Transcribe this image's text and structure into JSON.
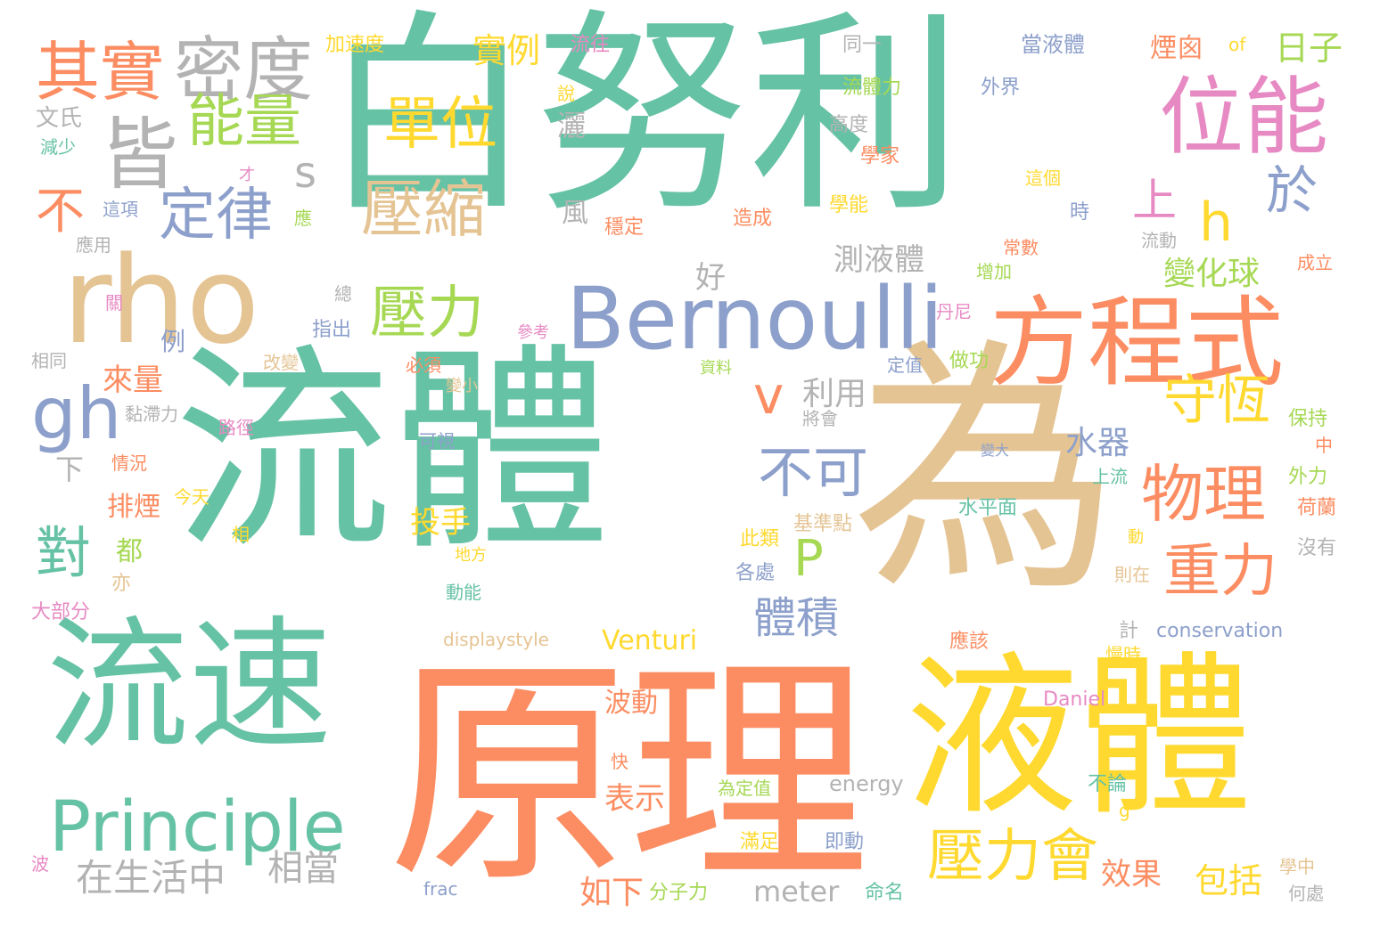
{
  "palette": {
    "green": "#66c2a5",
    "orange": "#fc8d62",
    "blue": "#8da0cb",
    "pink": "#e78ac3",
    "lime": "#a6d854",
    "yellow": "#ffd92f",
    "tan": "#e5c494",
    "gray": "#b3b3b3"
  },
  "words": [
    {
      "text": "白努利",
      "color": "green"
    },
    {
      "text": "流體",
      "color": "green"
    },
    {
      "text": "為",
      "color": "tan"
    },
    {
      "text": "原理",
      "color": "orange"
    },
    {
      "text": "液體",
      "color": "yellow"
    },
    {
      "text": "流速",
      "color": "green"
    },
    {
      "text": "Bernoulli",
      "color": "blue"
    },
    {
      "text": "rho",
      "color": "tan"
    },
    {
      "text": "方程式",
      "color": "orange"
    },
    {
      "text": "位能",
      "color": "pink"
    },
    {
      "text": "其實",
      "color": "orange"
    },
    {
      "text": "密度",
      "color": "gray"
    },
    {
      "text": "皆",
      "color": "gray"
    },
    {
      "text": "能量",
      "color": "lime"
    },
    {
      "text": "定律",
      "color": "blue"
    },
    {
      "text": "單位",
      "color": "yellow"
    },
    {
      "text": "壓縮",
      "color": "tan"
    },
    {
      "text": "壓力",
      "color": "lime"
    },
    {
      "text": "Principle",
      "color": "green"
    },
    {
      "text": "gh",
      "color": "blue"
    },
    {
      "text": "物理",
      "color": "orange"
    },
    {
      "text": "守恆",
      "color": "yellow"
    },
    {
      "text": "重力",
      "color": "orange"
    },
    {
      "text": "不可",
      "color": "blue"
    },
    {
      "text": "壓力會",
      "color": "yellow"
    },
    {
      "text": "於",
      "color": "blue"
    },
    {
      "text": "上",
      "color": "pink"
    },
    {
      "text": "h",
      "color": "yellow"
    },
    {
      "text": "s",
      "color": "gray"
    },
    {
      "text": "v",
      "color": "orange"
    },
    {
      "text": "P",
      "color": "lime"
    },
    {
      "text": "對",
      "color": "green"
    },
    {
      "text": "不",
      "color": "orange"
    },
    {
      "text": "實例",
      "color": "yellow"
    },
    {
      "text": "日子",
      "color": "lime"
    },
    {
      "text": "煙囪",
      "color": "orange"
    },
    {
      "text": "變化球",
      "color": "lime"
    },
    {
      "text": "測液體",
      "color": "gray"
    },
    {
      "text": "利用",
      "color": "gray"
    },
    {
      "text": "體積",
      "color": "blue"
    },
    {
      "text": "水器",
      "color": "blue"
    },
    {
      "text": "投手",
      "color": "yellow"
    },
    {
      "text": "在生活中",
      "color": "gray"
    },
    {
      "text": "相當",
      "color": "gray"
    },
    {
      "text": "效果",
      "color": "orange"
    },
    {
      "text": "包括",
      "color": "yellow"
    },
    {
      "text": "如下",
      "color": "orange"
    },
    {
      "text": "表示",
      "color": "orange"
    },
    {
      "text": "波動",
      "color": "orange"
    },
    {
      "text": "Venturi",
      "color": "yellow"
    },
    {
      "text": "meter",
      "color": "gray"
    },
    {
      "text": "來量",
      "color": "orange"
    },
    {
      "text": "排煙",
      "color": "orange"
    },
    {
      "text": "文氏",
      "color": "gray"
    },
    {
      "text": "下",
      "color": "gray"
    },
    {
      "text": "都",
      "color": "lime"
    },
    {
      "text": "灑",
      "color": "gray"
    },
    {
      "text": "風",
      "color": "gray"
    },
    {
      "text": "好",
      "color": "gray"
    },
    {
      "text": "例",
      "color": "blue"
    },
    {
      "text": "加速度",
      "color": "yellow"
    },
    {
      "text": "流往",
      "color": "pink"
    },
    {
      "text": "說",
      "color": "yellow"
    },
    {
      "text": "同一",
      "color": "gray"
    },
    {
      "text": "當液體",
      "color": "blue"
    },
    {
      "text": "of",
      "color": "yellow"
    },
    {
      "text": "流體力",
      "color": "lime"
    },
    {
      "text": "外界",
      "color": "blue"
    },
    {
      "text": "高度",
      "color": "gray"
    },
    {
      "text": "學家",
      "color": "orange"
    },
    {
      "text": "減少",
      "color": "green"
    },
    {
      "text": "才",
      "color": "pink"
    },
    {
      "text": "這項",
      "color": "blue"
    },
    {
      "text": "應",
      "color": "lime"
    },
    {
      "text": "應用",
      "color": "gray"
    },
    {
      "text": "穩定",
      "color": "orange"
    },
    {
      "text": "造成",
      "color": "orange"
    },
    {
      "text": "學能",
      "color": "yellow"
    },
    {
      "text": "這個",
      "color": "yellow"
    },
    {
      "text": "時",
      "color": "blue"
    },
    {
      "text": "常數",
      "color": "orange"
    },
    {
      "text": "增加",
      "color": "lime"
    },
    {
      "text": "流動",
      "color": "gray"
    },
    {
      "text": "成立",
      "color": "orange"
    },
    {
      "text": "關",
      "color": "pink"
    },
    {
      "text": "總",
      "color": "gray"
    },
    {
      "text": "丹尼",
      "color": "pink"
    },
    {
      "text": "指出",
      "color": "blue"
    },
    {
      "text": "參考",
      "color": "pink"
    },
    {
      "text": "相同",
      "color": "gray"
    },
    {
      "text": "改變",
      "color": "tan"
    },
    {
      "text": "必須",
      "color": "orange"
    },
    {
      "text": "定值",
      "color": "blue"
    },
    {
      "text": "做功",
      "color": "lime"
    },
    {
      "text": "資料",
      "color": "lime"
    },
    {
      "text": "變小",
      "color": "tan"
    },
    {
      "text": "黏滯力",
      "color": "gray"
    },
    {
      "text": "將會",
      "color": "gray"
    },
    {
      "text": "保持",
      "color": "lime"
    },
    {
      "text": "中",
      "color": "orange"
    },
    {
      "text": "路徑",
      "color": "pink"
    },
    {
      "text": "可視",
      "color": "blue"
    },
    {
      "text": "變大",
      "color": "blue"
    },
    {
      "text": "情況",
      "color": "orange"
    },
    {
      "text": "今天",
      "color": "yellow"
    },
    {
      "text": "上流",
      "color": "green"
    },
    {
      "text": "外力",
      "color": "lime"
    },
    {
      "text": "水平面",
      "color": "green"
    },
    {
      "text": "荷蘭",
      "color": "orange"
    },
    {
      "text": "相",
      "color": "yellow"
    },
    {
      "text": "基準點",
      "color": "tan"
    },
    {
      "text": "此類",
      "color": "yellow"
    },
    {
      "text": "動",
      "color": "yellow"
    },
    {
      "text": "地方",
      "color": "yellow"
    },
    {
      "text": "沒有",
      "color": "gray"
    },
    {
      "text": "各處",
      "color": "blue"
    },
    {
      "text": "亦",
      "color": "tan"
    },
    {
      "text": "則在",
      "color": "tan"
    },
    {
      "text": "大部分",
      "color": "pink"
    },
    {
      "text": "動能",
      "color": "green"
    },
    {
      "text": "displaystyle",
      "color": "tan"
    },
    {
      "text": "計",
      "color": "gray"
    },
    {
      "text": "應該",
      "color": "orange"
    },
    {
      "text": "conservation",
      "color": "blue"
    },
    {
      "text": "慢時",
      "color": "yellow"
    },
    {
      "text": "Daniel",
      "color": "pink"
    },
    {
      "text": "快",
      "color": "orange"
    },
    {
      "text": "為定值",
      "color": "lime"
    },
    {
      "text": "energy",
      "color": "gray"
    },
    {
      "text": "不論",
      "color": "green"
    },
    {
      "text": "g",
      "color": "yellow"
    },
    {
      "text": "滿足",
      "color": "yellow"
    },
    {
      "text": "即動",
      "color": "blue"
    },
    {
      "text": "波",
      "color": "pink"
    },
    {
      "text": "學中",
      "color": "tan"
    },
    {
      "text": "frac",
      "color": "blue"
    },
    {
      "text": "分子力",
      "color": "lime"
    },
    {
      "text": "命名",
      "color": "green"
    },
    {
      "text": "何處",
      "color": "gray"
    }
  ]
}
